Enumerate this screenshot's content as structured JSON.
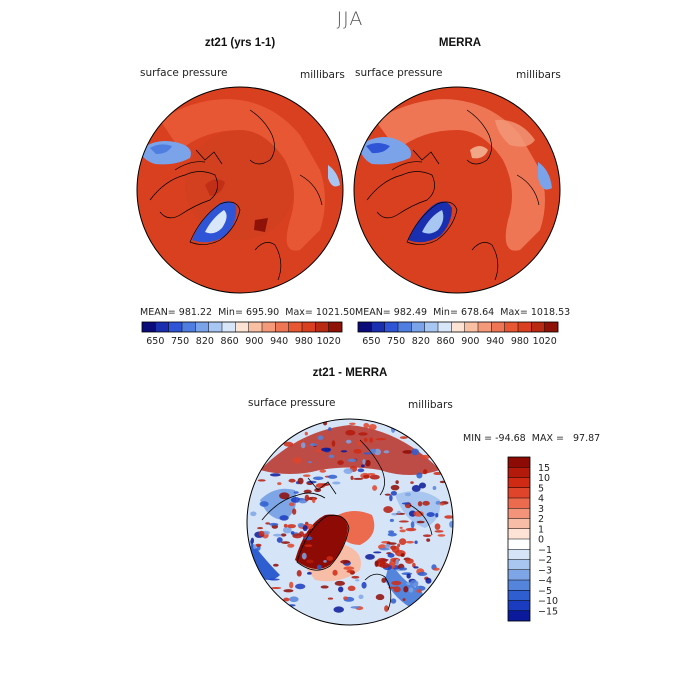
{
  "season": "JJA",
  "panels": [
    {
      "title": "zt21 (yrs 1-1)",
      "variable": "surface pressure",
      "units": "millibars",
      "stats": {
        "mean_label": "MEAN=",
        "mean": "981.22",
        "min_label": "Min=",
        "min": "695.90",
        "max_label": "Max=",
        "max": "1021.50"
      }
    },
    {
      "title": "MERRA",
      "variable": "surface pressure",
      "units": "millibars",
      "stats": {
        "mean_label": "MEAN=",
        "mean": "982.49",
        "min_label": "Min=",
        "min": "678.64",
        "max_label": "Max=",
        "max": "1018.53"
      }
    }
  ],
  "diff_panel": {
    "title": "zt21 - MERRA",
    "variable": "surface pressure",
    "units": "millibars",
    "minmax": "MIN = -94.68  MAX =   97.87"
  },
  "chart_data": [
    {
      "type": "heatmap",
      "title": "zt21 (yrs 1-1)",
      "projection": "north polar stereographic",
      "variable": "surface pressure",
      "units": "millibars",
      "mean": 981.22,
      "min": 695.9,
      "max": 1021.5,
      "colorbar_ticks": [
        "650",
        "750",
        "820",
        "860",
        "900",
        "940",
        "980",
        "1020"
      ],
      "colorbar_colors": [
        "#0b0b7a",
        "#1a2fb0",
        "#2f55d6",
        "#4f7ee0",
        "#7aa3ea",
        "#a8c6f2",
        "#d8e6fa",
        "#fde3d3",
        "#f8bfa3",
        "#f49a7a",
        "#ee7655",
        "#e75733",
        "#d9401f",
        "#b92a12",
        "#8e1208"
      ]
    },
    {
      "type": "heatmap",
      "title": "MERRA",
      "projection": "north polar stereographic",
      "variable": "surface pressure",
      "units": "millibars",
      "mean": 982.49,
      "min": 678.64,
      "max": 1018.53,
      "colorbar_ticks": [
        "650",
        "750",
        "820",
        "860",
        "900",
        "940",
        "980",
        "1020"
      ],
      "colorbar_colors": [
        "#0b0b7a",
        "#1a2fb0",
        "#2f55d6",
        "#4f7ee0",
        "#7aa3ea",
        "#a8c6f2",
        "#d8e6fa",
        "#fde3d3",
        "#f8bfa3",
        "#f49a7a",
        "#ee7655",
        "#e75733",
        "#d9401f",
        "#b92a12",
        "#8e1208"
      ]
    },
    {
      "type": "heatmap",
      "title": "zt21 - MERRA",
      "projection": "north polar stereographic",
      "variable": "surface pressure difference",
      "units": "millibars",
      "min": -94.68,
      "max": 97.87,
      "colorbar_ticks": [
        "15",
        "10",
        "5",
        "4",
        "3",
        "2",
        "1",
        "0",
        "−1",
        "−2",
        "−3",
        "−4",
        "−5",
        "−10",
        "−15"
      ],
      "colorbar_colors": [
        "#8e0a05",
        "#b41a0c",
        "#d02a14",
        "#e0442a",
        "#ec6a4e",
        "#f39379",
        "#f8bda6",
        "#fde2d6",
        "#ffffff",
        "#d6e4f8",
        "#a9c6f0",
        "#7ea6e6",
        "#5584dc",
        "#2f5ed0",
        "#1a3cc0",
        "#0a1a9a"
      ]
    }
  ]
}
